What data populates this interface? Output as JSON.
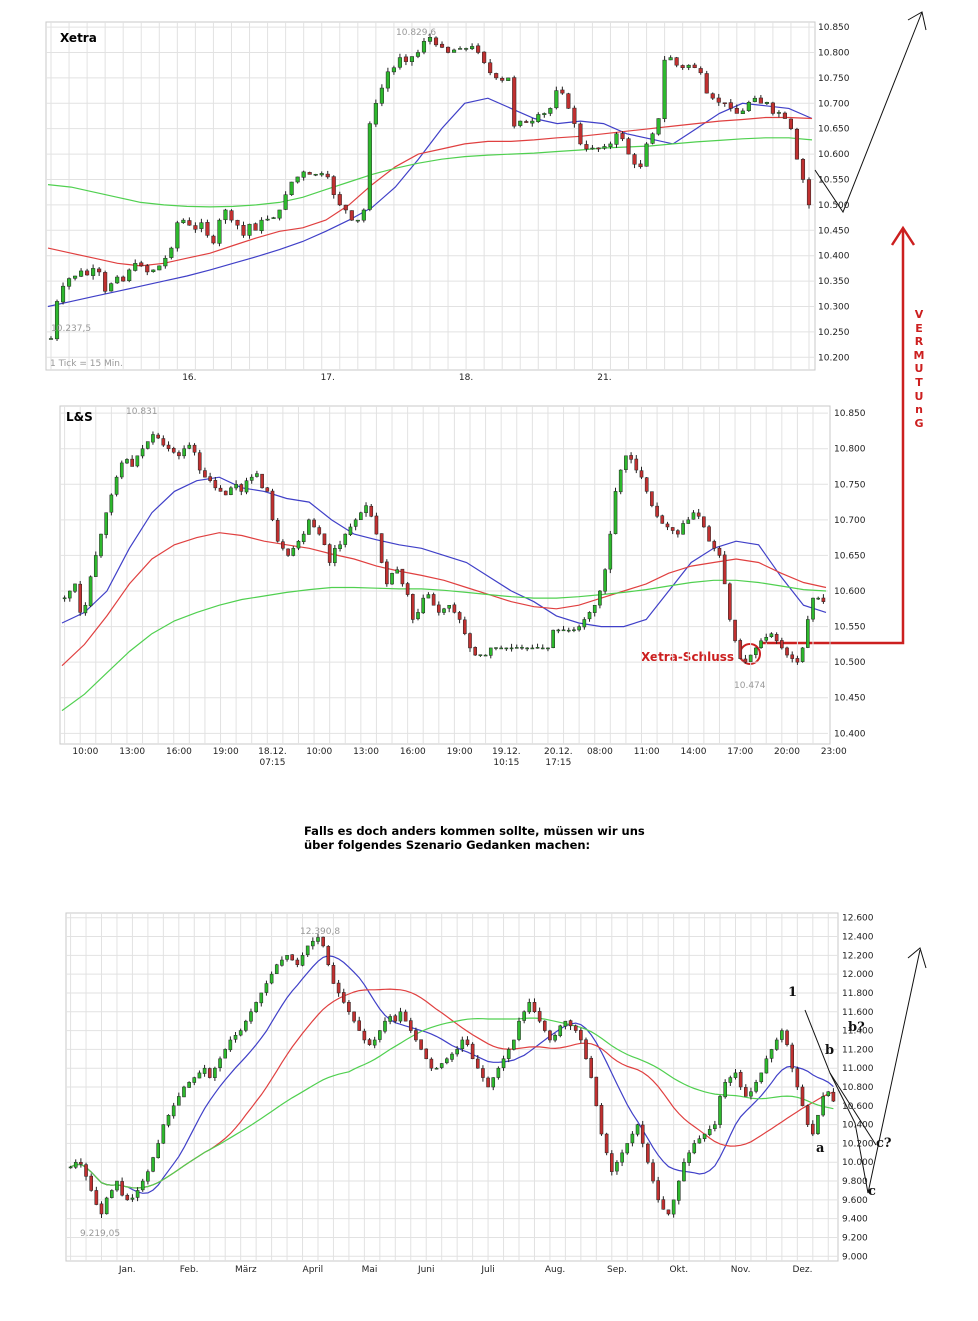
{
  "caption": {
    "line1": "Falls es doch anders kommen sollte, müssen wir uns",
    "line2": "über folgendes Szenario Gedanken machen:"
  },
  "annotation": {
    "vermutung_letters": [
      "V",
      "E",
      "R",
      "M",
      "U",
      "T",
      "U",
      "n",
      "G"
    ],
    "xetra_schluss": "Xetra-Schluss",
    "color": "#cc1f1f"
  },
  "chart_data": [
    {
      "type": "candlestick",
      "title": "Xetra",
      "note": "1 Tick = 15 Min.",
      "ylim": [
        10175,
        10860
      ],
      "yticks": [
        10850,
        10800,
        10750,
        10700,
        10650,
        10600,
        10550,
        10500,
        10450,
        10400,
        10350,
        10300,
        10250,
        10200
      ],
      "ytick_labels": [
        "10.850",
        "10.800",
        "10.750",
        "10.700",
        "10.650",
        "10.600",
        "10.550",
        "10.500",
        "10.450",
        "10.400",
        "10.350",
        "10.300",
        "10.250",
        "10.200"
      ],
      "xticks": [
        {
          "i": 23,
          "label": "16."
        },
        {
          "i": 46,
          "label": "17."
        },
        {
          "i": 69,
          "label": "18."
        },
        {
          "i": 92,
          "label": "21."
        }
      ],
      "low_label": "10.237,5",
      "high_label": "10.829,6",
      "closes": [
        10237,
        10310,
        10340,
        10355,
        10360,
        10370,
        10362,
        10375,
        10368,
        10330,
        10345,
        10358,
        10350,
        10372,
        10385,
        10380,
        10368,
        10372,
        10380,
        10395,
        10415,
        10465,
        10470,
        10460,
        10452,
        10465,
        10440,
        10425,
        10470,
        10490,
        10470,
        10460,
        10440,
        10462,
        10450,
        10470,
        10472,
        10475,
        10490,
        10520,
        10545,
        10555,
        10565,
        10560,
        10560,
        10562,
        10555,
        10520,
        10500,
        10490,
        10470,
        10470,
        10490,
        10660,
        10700,
        10730,
        10762,
        10770,
        10790,
        10782,
        10792,
        10800,
        10822,
        10830,
        10815,
        10810,
        10800,
        10805,
        10808,
        10808,
        10812,
        10800,
        10780,
        10760,
        10750,
        10745,
        10750,
        10655,
        10665,
        10662,
        10665,
        10678,
        10680,
        10690,
        10725,
        10720,
        10690,
        10660,
        10620,
        10610,
        10612,
        10610,
        10615,
        10620,
        10640,
        10630,
        10600,
        10580,
        10575,
        10620,
        10640,
        10670,
        10785,
        10790,
        10775,
        10770,
        10775,
        10770,
        10760,
        10720,
        10710,
        10702,
        10700,
        10690,
        10680,
        10685,
        10702,
        10710,
        10700,
        10702,
        10680,
        10682,
        10670,
        10650,
        10590,
        10550,
        10500
      ],
      "series": [
        {
          "name": "blue",
          "color": "#4040c8",
          "values": [
            10300,
            10310,
            10320,
            10330,
            10340,
            10350,
            10360,
            10372,
            10385,
            10398,
            10412,
            10428,
            10448,
            10470,
            10495,
            10535,
            10590,
            10650,
            10700,
            10710,
            10690,
            10670,
            10660,
            10665,
            10660,
            10640,
            10630,
            10620,
            10650,
            10680,
            10700,
            10695,
            10690,
            10670
          ]
        },
        {
          "name": "red",
          "color": "#e04040",
          "values": [
            10415,
            10405,
            10395,
            10385,
            10380,
            10385,
            10395,
            10405,
            10420,
            10435,
            10448,
            10455,
            10470,
            10500,
            10540,
            10575,
            10600,
            10610,
            10620,
            10625,
            10625,
            10628,
            10632,
            10635,
            10640,
            10645,
            10650,
            10655,
            10660,
            10665,
            10668,
            10672,
            10672,
            10670
          ]
        },
        {
          "name": "green",
          "color": "#50d050",
          "values": [
            10540,
            10535,
            10525,
            10515,
            10505,
            10500,
            10497,
            10496,
            10497,
            10500,
            10505,
            10515,
            10530,
            10545,
            10560,
            10572,
            10582,
            10590,
            10595,
            10598,
            10600,
            10602,
            10605,
            10608,
            10612,
            10614,
            10616,
            10620,
            10624,
            10627,
            10630,
            10632,
            10632,
            10628
          ]
        }
      ]
    },
    {
      "type": "candlestick",
      "title": "L&S",
      "ylim": [
        10385,
        10860
      ],
      "yticks": [
        10850,
        10800,
        10750,
        10700,
        10650,
        10600,
        10550,
        10500,
        10450,
        10400
      ],
      "ytick_labels": [
        "10.850",
        "10.800",
        "10.750",
        "10.700",
        "10.650",
        "10.600",
        "10.550",
        "10.500",
        "10.450",
        "10.400"
      ],
      "xticks": [
        {
          "i": 4,
          "label": "10:00"
        },
        {
          "i": 13,
          "label": "13:00"
        },
        {
          "i": 22,
          "label": "16:00"
        },
        {
          "i": 31,
          "label": "19:00"
        },
        {
          "i": 40,
          "label": "18.12.",
          "sub": "07:15"
        },
        {
          "i": 49,
          "label": "10:00"
        },
        {
          "i": 58,
          "label": "13:00"
        },
        {
          "i": 67,
          "label": "16:00"
        },
        {
          "i": 76,
          "label": "19:00"
        },
        {
          "i": 85,
          "label": "19.12.",
          "sub": "10:15"
        },
        {
          "i": 95,
          "label": "20.12.",
          "sub": "17:15"
        },
        {
          "i": 103,
          "label": "08:00"
        },
        {
          "i": 112,
          "label": "11:00"
        },
        {
          "i": 121,
          "label": "14:00"
        },
        {
          "i": 130,
          "label": "17:00"
        },
        {
          "i": 139,
          "label": "20:00"
        },
        {
          "i": 148,
          "label": "23:00"
        }
      ],
      "low_label": "10.474",
      "high_label": "10.831",
      "closes": [
        10590,
        10600,
        10610,
        10570,
        10580,
        10620,
        10650,
        10680,
        10710,
        10735,
        10760,
        10780,
        10785,
        10775,
        10790,
        10800,
        10810,
        10820,
        10815,
        10805,
        10800,
        10795,
        10790,
        10800,
        10805,
        10795,
        10770,
        10760,
        10755,
        10745,
        10740,
        10735,
        10745,
        10750,
        10740,
        10755,
        10760,
        10765,
        10745,
        10740,
        10700,
        10670,
        10660,
        10650,
        10660,
        10670,
        10680,
        10700,
        10690,
        10680,
        10665,
        10640,
        10660,
        10665,
        10680,
        10690,
        10700,
        10710,
        10720,
        10705,
        10680,
        10640,
        10610,
        10625,
        10630,
        10610,
        10595,
        10560,
        10570,
        10590,
        10595,
        10580,
        10570,
        10575,
        10580,
        10570,
        10560,
        10540,
        10520,
        10510,
        10510,
        10510,
        10520,
        10520,
        10520,
        10520,
        10520,
        10520,
        10520,
        10520,
        10520,
        10520,
        10520,
        10520,
        10545,
        10545,
        10545,
        10545,
        10545,
        10550,
        10560,
        10570,
        10580,
        10600,
        10630,
        10680,
        10740,
        10770,
        10790,
        10785,
        10770,
        10760,
        10740,
        10720,
        10705,
        10695,
        10690,
        10685,
        10680,
        10695,
        10700,
        10710,
        10705,
        10690,
        10670,
        10660,
        10650,
        10610,
        10560,
        10530,
        10505,
        10500,
        10510,
        10520,
        10530,
        10535,
        10540,
        10530,
        10520,
        10510,
        10505,
        10500,
        10520,
        10560,
        10590,
        10590,
        10585
      ],
      "series": [
        {
          "name": "blue",
          "color": "#4040c8",
          "values": [
            10555,
            10570,
            10600,
            10660,
            10710,
            10740,
            10755,
            10760,
            10745,
            10740,
            10730,
            10725,
            10700,
            10680,
            10672,
            10665,
            10660,
            10650,
            10640,
            10620,
            10600,
            10585,
            10565,
            10555,
            10550,
            10550,
            10560,
            10600,
            10640,
            10660,
            10670,
            10665,
            10620,
            10580,
            10570
          ]
        },
        {
          "name": "red",
          "color": "#e04040",
          "values": [
            10495,
            10525,
            10565,
            10610,
            10645,
            10665,
            10675,
            10682,
            10678,
            10670,
            10665,
            10660,
            10652,
            10645,
            10635,
            10628,
            10622,
            10615,
            10605,
            10595,
            10585,
            10578,
            10575,
            10580,
            10590,
            10600,
            10610,
            10625,
            10635,
            10640,
            10645,
            10640,
            10625,
            10612,
            10605
          ]
        },
        {
          "name": "green",
          "color": "#50d050",
          "values": [
            10432,
            10455,
            10485,
            10515,
            10540,
            10558,
            10570,
            10580,
            10588,
            10593,
            10598,
            10602,
            10605,
            10605,
            10604,
            10603,
            10603,
            10601,
            10598,
            10595,
            10592,
            10590,
            10590,
            10592,
            10595,
            10598,
            10602,
            10607,
            10612,
            10615,
            10615,
            10612,
            10607,
            10602,
            10600
          ]
        }
      ]
    },
    {
      "type": "candlestick",
      "title": "",
      "ylim": [
        8950,
        12650
      ],
      "yticks": [
        12600,
        12400,
        12200,
        12000,
        11800,
        11600,
        11400,
        11200,
        11000,
        10800,
        10600,
        10400,
        10200,
        10000,
        9800,
        9600,
        9400,
        9200,
        9000
      ],
      "ytick_labels": [
        "12.600",
        "12.400",
        "12.200",
        "12.000",
        "11.800",
        "11.600",
        "11.400",
        "11.200",
        "11.000",
        "10.800",
        "10.600",
        "10.400",
        "10.200",
        "10.000",
        "9.800",
        "9.600",
        "9.400",
        "9.200",
        "9.000"
      ],
      "xticks": [
        {
          "i": 11,
          "label": "Jan."
        },
        {
          "i": 23,
          "label": "Feb."
        },
        {
          "i": 34,
          "label": "März"
        },
        {
          "i": 47,
          "label": "April"
        },
        {
          "i": 58,
          "label": "Mai"
        },
        {
          "i": 69,
          "label": "Juni"
        },
        {
          "i": 81,
          "label": "Juli"
        },
        {
          "i": 94,
          "label": "Aug."
        },
        {
          "i": 106,
          "label": "Sep."
        },
        {
          "i": 118,
          "label": "Okt."
        },
        {
          "i": 130,
          "label": "Nov."
        },
        {
          "i": 142,
          "label": "Dez."
        }
      ],
      "low_label": "9.219,05",
      "high_label": "12.390,8",
      "closes": [
        9950,
        10000,
        9980,
        9850,
        9700,
        9550,
        9450,
        9620,
        9700,
        9800,
        9650,
        9600,
        9620,
        9700,
        9800,
        9900,
        10050,
        10200,
        10400,
        10500,
        10600,
        10700,
        10800,
        10850,
        10900,
        10950,
        11000,
        10900,
        11000,
        11100,
        11200,
        11300,
        11350,
        11400,
        11500,
        11600,
        11700,
        11800,
        11900,
        12000,
        12100,
        12150,
        12200,
        12150,
        12100,
        12200,
        12300,
        12350,
        12390,
        12300,
        12100,
        11900,
        11800,
        11700,
        11600,
        11500,
        11400,
        11300,
        11250,
        11300,
        11400,
        11500,
        11550,
        11500,
        11600,
        11500,
        11400,
        11300,
        11200,
        11100,
        11000,
        11000,
        11050,
        11100,
        11150,
        11200,
        11300,
        11250,
        11100,
        11000,
        10900,
        10800,
        10900,
        11000,
        11100,
        11200,
        11300,
        11500,
        11600,
        11700,
        11600,
        11500,
        11400,
        11300,
        11350,
        11450,
        11500,
        11450,
        11400,
        11300,
        11100,
        10900,
        10600,
        10300,
        10100,
        9900,
        10000,
        10100,
        10200,
        10300,
        10400,
        10200,
        10000,
        9800,
        9600,
        9500,
        9450,
        9600,
        9800,
        10000,
        10100,
        10200,
        10250,
        10300,
        10350,
        10400,
        10700,
        10850,
        10900,
        10950,
        10800,
        10700,
        10750,
        10850,
        10950,
        11100,
        11200,
        11300,
        11400,
        11250,
        11000,
        10800,
        10600,
        10400,
        10300,
        10500,
        10700,
        10750,
        10650
      ]
    }
  ],
  "wave_labels": [
    "1",
    "a",
    "b",
    "b?",
    "c?",
    "c"
  ]
}
